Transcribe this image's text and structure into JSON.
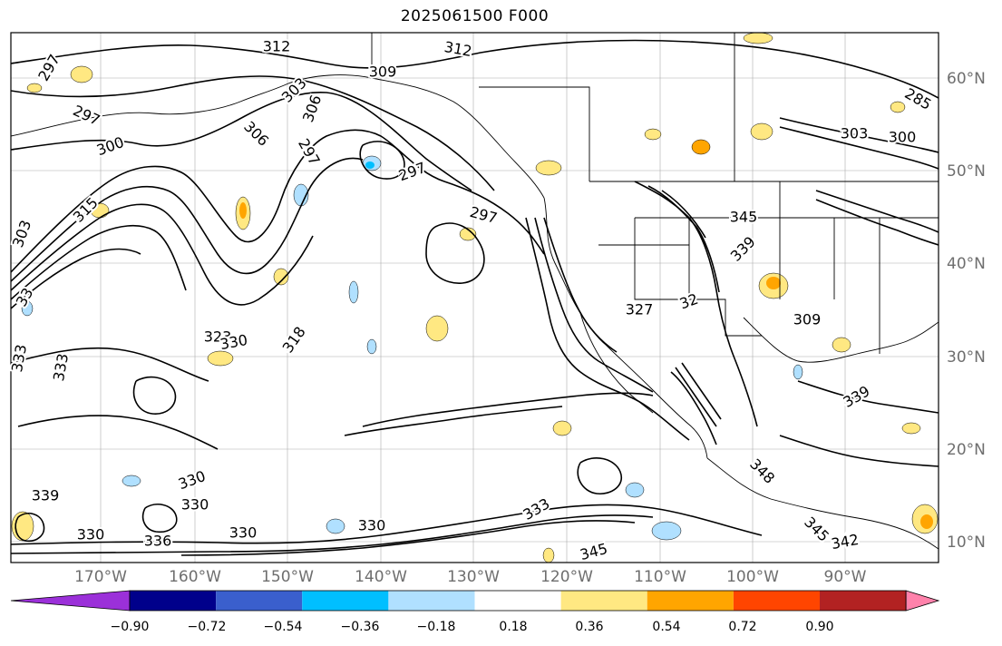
{
  "title": "2025061500 F000",
  "map": {
    "projection": "lat-lon",
    "variable_contours": "isentropes (K)",
    "contour_labels": [
      "312",
      "312",
      "309",
      "297",
      "297",
      "303",
      "306",
      "300",
      "297",
      "306",
      "297",
      "297",
      "303",
      "315",
      "33",
      "323",
      "330",
      "318",
      "333",
      "333",
      "327",
      "32",
      "339",
      "345",
      "309",
      "339",
      "348",
      "330",
      "330",
      "333",
      "330",
      "330",
      "336",
      "330",
      "345",
      "345",
      "342",
      "285",
      "303",
      "300",
      "339"
    ],
    "lat_labels": [
      "60°N",
      "50°N",
      "40°N",
      "30°N",
      "20°N",
      "10°N"
    ],
    "lon_labels": [
      "170°W",
      "160°W",
      "150°W",
      "140°W",
      "130°W",
      "120°W",
      "110°W",
      "100°W",
      "90°W"
    ]
  },
  "colorbar": {
    "colors": [
      "#9b30d9",
      "#00008b",
      "#3a5fcd",
      "#00bfff",
      "#b0e0ff",
      "#ffffff",
      "#ffe882",
      "#ffa500",
      "#ff4500",
      "#b22222",
      "#ff82ab"
    ],
    "tick_labels": [
      "−0.90",
      "−0.72",
      "−0.54",
      "−0.36",
      "−0.18",
      "0.18",
      "0.36",
      "0.54",
      "0.72",
      "0.90"
    ],
    "extend": "both"
  }
}
